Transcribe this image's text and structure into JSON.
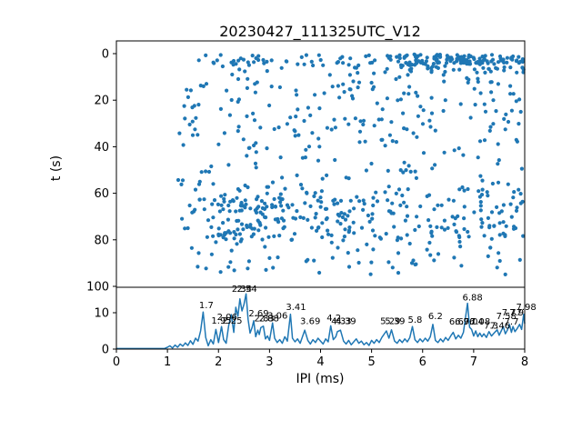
{
  "title": "20230427_111325UTC_V12",
  "colors": {
    "series": "#1f77b4",
    "axis": "#000000",
    "background": "#ffffff",
    "annotation_text": "#000000"
  },
  "chart_data": [
    {
      "type": "scatter",
      "ylabel": "t (s)",
      "xlabel": "",
      "xlim": [
        0,
        8
      ],
      "ylim": [
        100,
        0
      ],
      "y_axis_inverted": true,
      "yticks": [
        0,
        20,
        40,
        60,
        80,
        100
      ],
      "xticks": [
        0,
        1,
        2,
        3,
        4,
        5,
        6,
        7,
        8
      ],
      "grid": false,
      "legend": "none",
      "marker": "dot",
      "density_bands": [
        {
          "x": [
            1.6,
            5.6
          ],
          "t": [
            0.5,
            5.5
          ],
          "count": 55
        },
        {
          "x": [
            5.5,
            8.0
          ],
          "t": [
            0.3,
            4.5
          ],
          "count": 115
        },
        {
          "x": [
            5.5,
            8.0
          ],
          "t": [
            4.5,
            8.5
          ],
          "count": 30
        },
        {
          "x": [
            1.35,
            8.0
          ],
          "t": [
            5.5,
            20
          ],
          "count": 85
        },
        {
          "x": [
            1.2,
            8.0
          ],
          "t": [
            20,
            40
          ],
          "count": 110
        },
        {
          "x": [
            1.2,
            8.0
          ],
          "t": [
            40,
            57
          ],
          "count": 60
        },
        {
          "x": [
            1.25,
            8.0
          ],
          "t": [
            57,
            62
          ],
          "count": 45
        },
        {
          "x": [
            1.2,
            8.0
          ],
          "t": [
            62,
            79
          ],
          "count": 220
        },
        {
          "x": [
            2.0,
            3.3
          ],
          "t": [
            62,
            80
          ],
          "count": 45
        },
        {
          "x": [
            1.3,
            8.0
          ],
          "t": [
            79,
            95
          ],
          "count": 70
        }
      ]
    },
    {
      "type": "line",
      "ylabel": "",
      "xlabel": "IPI (ms)",
      "xlim": [
        0,
        8
      ],
      "ylim": [
        0,
        17
      ],
      "yticks": [
        0,
        10
      ],
      "xticks": [
        0,
        1,
        2,
        3,
        4,
        5,
        6,
        7,
        8
      ],
      "grid": false,
      "legend": "none",
      "points": [
        [
          0.0,
          0.15
        ],
        [
          0.5,
          0.15
        ],
        [
          0.9,
          0.15
        ],
        [
          0.95,
          0.2
        ],
        [
          1.0,
          0.5
        ],
        [
          1.05,
          0.9
        ],
        [
          1.1,
          0.3
        ],
        [
          1.15,
          1.1
        ],
        [
          1.2,
          0.5
        ],
        [
          1.25,
          1.4
        ],
        [
          1.3,
          0.8
        ],
        [
          1.35,
          1.7
        ],
        [
          1.4,
          1.0
        ],
        [
          1.45,
          2.3
        ],
        [
          1.5,
          1.3
        ],
        [
          1.55,
          3.0
        ],
        [
          1.6,
          2.2
        ],
        [
          1.65,
          5.0
        ],
        [
          1.7,
          10.2
        ],
        [
          1.75,
          3.2
        ],
        [
          1.8,
          0.9
        ],
        [
          1.85,
          2.6
        ],
        [
          1.9,
          1.4
        ],
        [
          1.95,
          5.4
        ],
        [
          2.0,
          1.8
        ],
        [
          2.06,
          6.2
        ],
        [
          2.1,
          2.6
        ],
        [
          2.15,
          1.6
        ],
        [
          2.2,
          6.5
        ],
        [
          2.25,
          9.5
        ],
        [
          2.3,
          4.6
        ],
        [
          2.34,
          11.5
        ],
        [
          2.38,
          9.0
        ],
        [
          2.42,
          13.8
        ],
        [
          2.46,
          10.5
        ],
        [
          2.5,
          12.3
        ],
        [
          2.54,
          15.2
        ],
        [
          2.58,
          8.2
        ],
        [
          2.62,
          4.4
        ],
        [
          2.66,
          6.0
        ],
        [
          2.69,
          7.8
        ],
        [
          2.73,
          3.4
        ],
        [
          2.77,
          5.2
        ],
        [
          2.8,
          4.0
        ],
        [
          2.83,
          5.9
        ],
        [
          2.88,
          6.3
        ],
        [
          2.92,
          2.8
        ],
        [
          2.96,
          3.6
        ],
        [
          3.0,
          2.4
        ],
        [
          3.06,
          7.2
        ],
        [
          3.1,
          3.0
        ],
        [
          3.15,
          1.8
        ],
        [
          3.2,
          2.6
        ],
        [
          3.25,
          1.6
        ],
        [
          3.3,
          3.4
        ],
        [
          3.35,
          2.2
        ],
        [
          3.41,
          9.6
        ],
        [
          3.45,
          3.0
        ],
        [
          3.5,
          2.0
        ],
        [
          3.55,
          2.8
        ],
        [
          3.6,
          1.6
        ],
        [
          3.69,
          5.2
        ],
        [
          3.75,
          2.4
        ],
        [
          3.8,
          1.4
        ],
        [
          3.85,
          2.6
        ],
        [
          3.9,
          1.8
        ],
        [
          3.95,
          3.0
        ],
        [
          4.0,
          2.2
        ],
        [
          4.05,
          1.4
        ],
        [
          4.1,
          2.8
        ],
        [
          4.15,
          2.0
        ],
        [
          4.2,
          6.4
        ],
        [
          4.25,
          2.6
        ],
        [
          4.3,
          3.4
        ],
        [
          4.33,
          4.8
        ],
        [
          4.39,
          5.2
        ],
        [
          4.45,
          2.2
        ],
        [
          4.5,
          1.4
        ],
        [
          4.55,
          2.4
        ],
        [
          4.6,
          1.2
        ],
        [
          4.65,
          2.0
        ],
        [
          4.7,
          2.8
        ],
        [
          4.75,
          1.6
        ],
        [
          4.8,
          2.2
        ],
        [
          4.85,
          1.2
        ],
        [
          4.9,
          1.8
        ],
        [
          4.95,
          1.0
        ],
        [
          5.0,
          2.4
        ],
        [
          5.05,
          1.6
        ],
        [
          5.1,
          2.6
        ],
        [
          5.15,
          1.8
        ],
        [
          5.2,
          3.2
        ],
        [
          5.29,
          5.0
        ],
        [
          5.34,
          3.0
        ],
        [
          5.39,
          5.3
        ],
        [
          5.45,
          2.2
        ],
        [
          5.5,
          1.6
        ],
        [
          5.55,
          2.6
        ],
        [
          5.6,
          1.8
        ],
        [
          5.65,
          2.8
        ],
        [
          5.7,
          2.0
        ],
        [
          5.75,
          3.2
        ],
        [
          5.8,
          6.2
        ],
        [
          5.85,
          2.6
        ],
        [
          5.9,
          1.8
        ],
        [
          5.95,
          2.8
        ],
        [
          6.0,
          2.0
        ],
        [
          6.05,
          3.0
        ],
        [
          6.1,
          2.2
        ],
        [
          6.15,
          3.4
        ],
        [
          6.2,
          6.8
        ],
        [
          6.25,
          2.4
        ],
        [
          6.3,
          1.8
        ],
        [
          6.35,
          2.8
        ],
        [
          6.4,
          2.0
        ],
        [
          6.45,
          3.2
        ],
        [
          6.5,
          2.4
        ],
        [
          6.55,
          3.6
        ],
        [
          6.6,
          4.6
        ],
        [
          6.65,
          2.8
        ],
        [
          6.7,
          3.8
        ],
        [
          6.75,
          3.0
        ],
        [
          6.8,
          4.6
        ],
        [
          6.88,
          12.6
        ],
        [
          6.92,
          6.0
        ],
        [
          6.96,
          5.4
        ],
        [
          7.0,
          3.6
        ],
        [
          7.04,
          5.0
        ],
        [
          7.08,
          3.4
        ],
        [
          7.12,
          4.4
        ],
        [
          7.16,
          3.4
        ],
        [
          7.2,
          4.2
        ],
        [
          7.25,
          3.2
        ],
        [
          7.3,
          4.8
        ],
        [
          7.35,
          3.6
        ],
        [
          7.4,
          4.4
        ],
        [
          7.46,
          5.3
        ],
        [
          7.5,
          3.8
        ],
        [
          7.54,
          5.0
        ],
        [
          7.58,
          6.2
        ],
        [
          7.62,
          4.2
        ],
        [
          7.66,
          5.2
        ],
        [
          7.7,
          6.8
        ],
        [
          7.74,
          4.6
        ],
        [
          7.77,
          6.2
        ],
        [
          7.81,
          4.8
        ],
        [
          7.85,
          5.6
        ],
        [
          7.9,
          6.8
        ],
        [
          7.94,
          5.4
        ],
        [
          7.98,
          9.6
        ],
        [
          8.0,
          7.0
        ]
      ],
      "annotations": [
        {
          "x": 1.62,
          "y": 11.3,
          "label": "1.7"
        },
        {
          "x": 1.86,
          "y": 7.0,
          "label": "1.95"
        },
        {
          "x": 2.07,
          "y": 7.0,
          "label": "2.25"
        },
        {
          "x": 1.97,
          "y": 8.0,
          "label": "2.06"
        },
        {
          "x": 2.26,
          "y": 15.7,
          "label": "2.34"
        },
        {
          "x": 2.36,
          "y": 15.7,
          "label": "2.54"
        },
        {
          "x": 2.59,
          "y": 9.0,
          "label": "2.69"
        },
        {
          "x": 2.7,
          "y": 7.6,
          "label": "2.83"
        },
        {
          "x": 2.79,
          "y": 7.6,
          "label": "2.88"
        },
        {
          "x": 2.96,
          "y": 8.4,
          "label": "3.06"
        },
        {
          "x": 3.32,
          "y": 10.8,
          "label": "3.41"
        },
        {
          "x": 3.6,
          "y": 6.9,
          "label": "3.69"
        },
        {
          "x": 4.12,
          "y": 7.8,
          "label": "4.2"
        },
        {
          "x": 4.21,
          "y": 6.9,
          "label": "4.33"
        },
        {
          "x": 4.3,
          "y": 6.9,
          "label": "4.39"
        },
        {
          "x": 5.17,
          "y": 6.9,
          "label": "5.29"
        },
        {
          "x": 5.26,
          "y": 6.9,
          "label": "5.39"
        },
        {
          "x": 5.71,
          "y": 7.3,
          "label": "5.8"
        },
        {
          "x": 6.11,
          "y": 8.2,
          "label": "6.2"
        },
        {
          "x": 6.78,
          "y": 13.4,
          "label": "6.88"
        },
        {
          "x": 6.52,
          "y": 6.7,
          "label": "6.6"
        },
        {
          "x": 6.63,
          "y": 6.7,
          "label": "6.96"
        },
        {
          "x": 6.8,
          "y": 6.7,
          "label": "7.04"
        },
        {
          "x": 6.93,
          "y": 6.7,
          "label": "7.08"
        },
        {
          "x": 7.2,
          "y": 5.6,
          "label": "7.3"
        },
        {
          "x": 7.32,
          "y": 5.6,
          "label": "7.46"
        },
        {
          "x": 7.44,
          "y": 8.2,
          "label": "7.58"
        },
        {
          "x": 7.6,
          "y": 6.7,
          "label": "7.7"
        },
        {
          "x": 7.55,
          "y": 9.2,
          "label": "7.77"
        },
        {
          "x": 7.7,
          "y": 9.2,
          "label": "7.9"
        },
        {
          "x": 7.83,
          "y": 10.8,
          "label": "7.98"
        }
      ]
    }
  ]
}
